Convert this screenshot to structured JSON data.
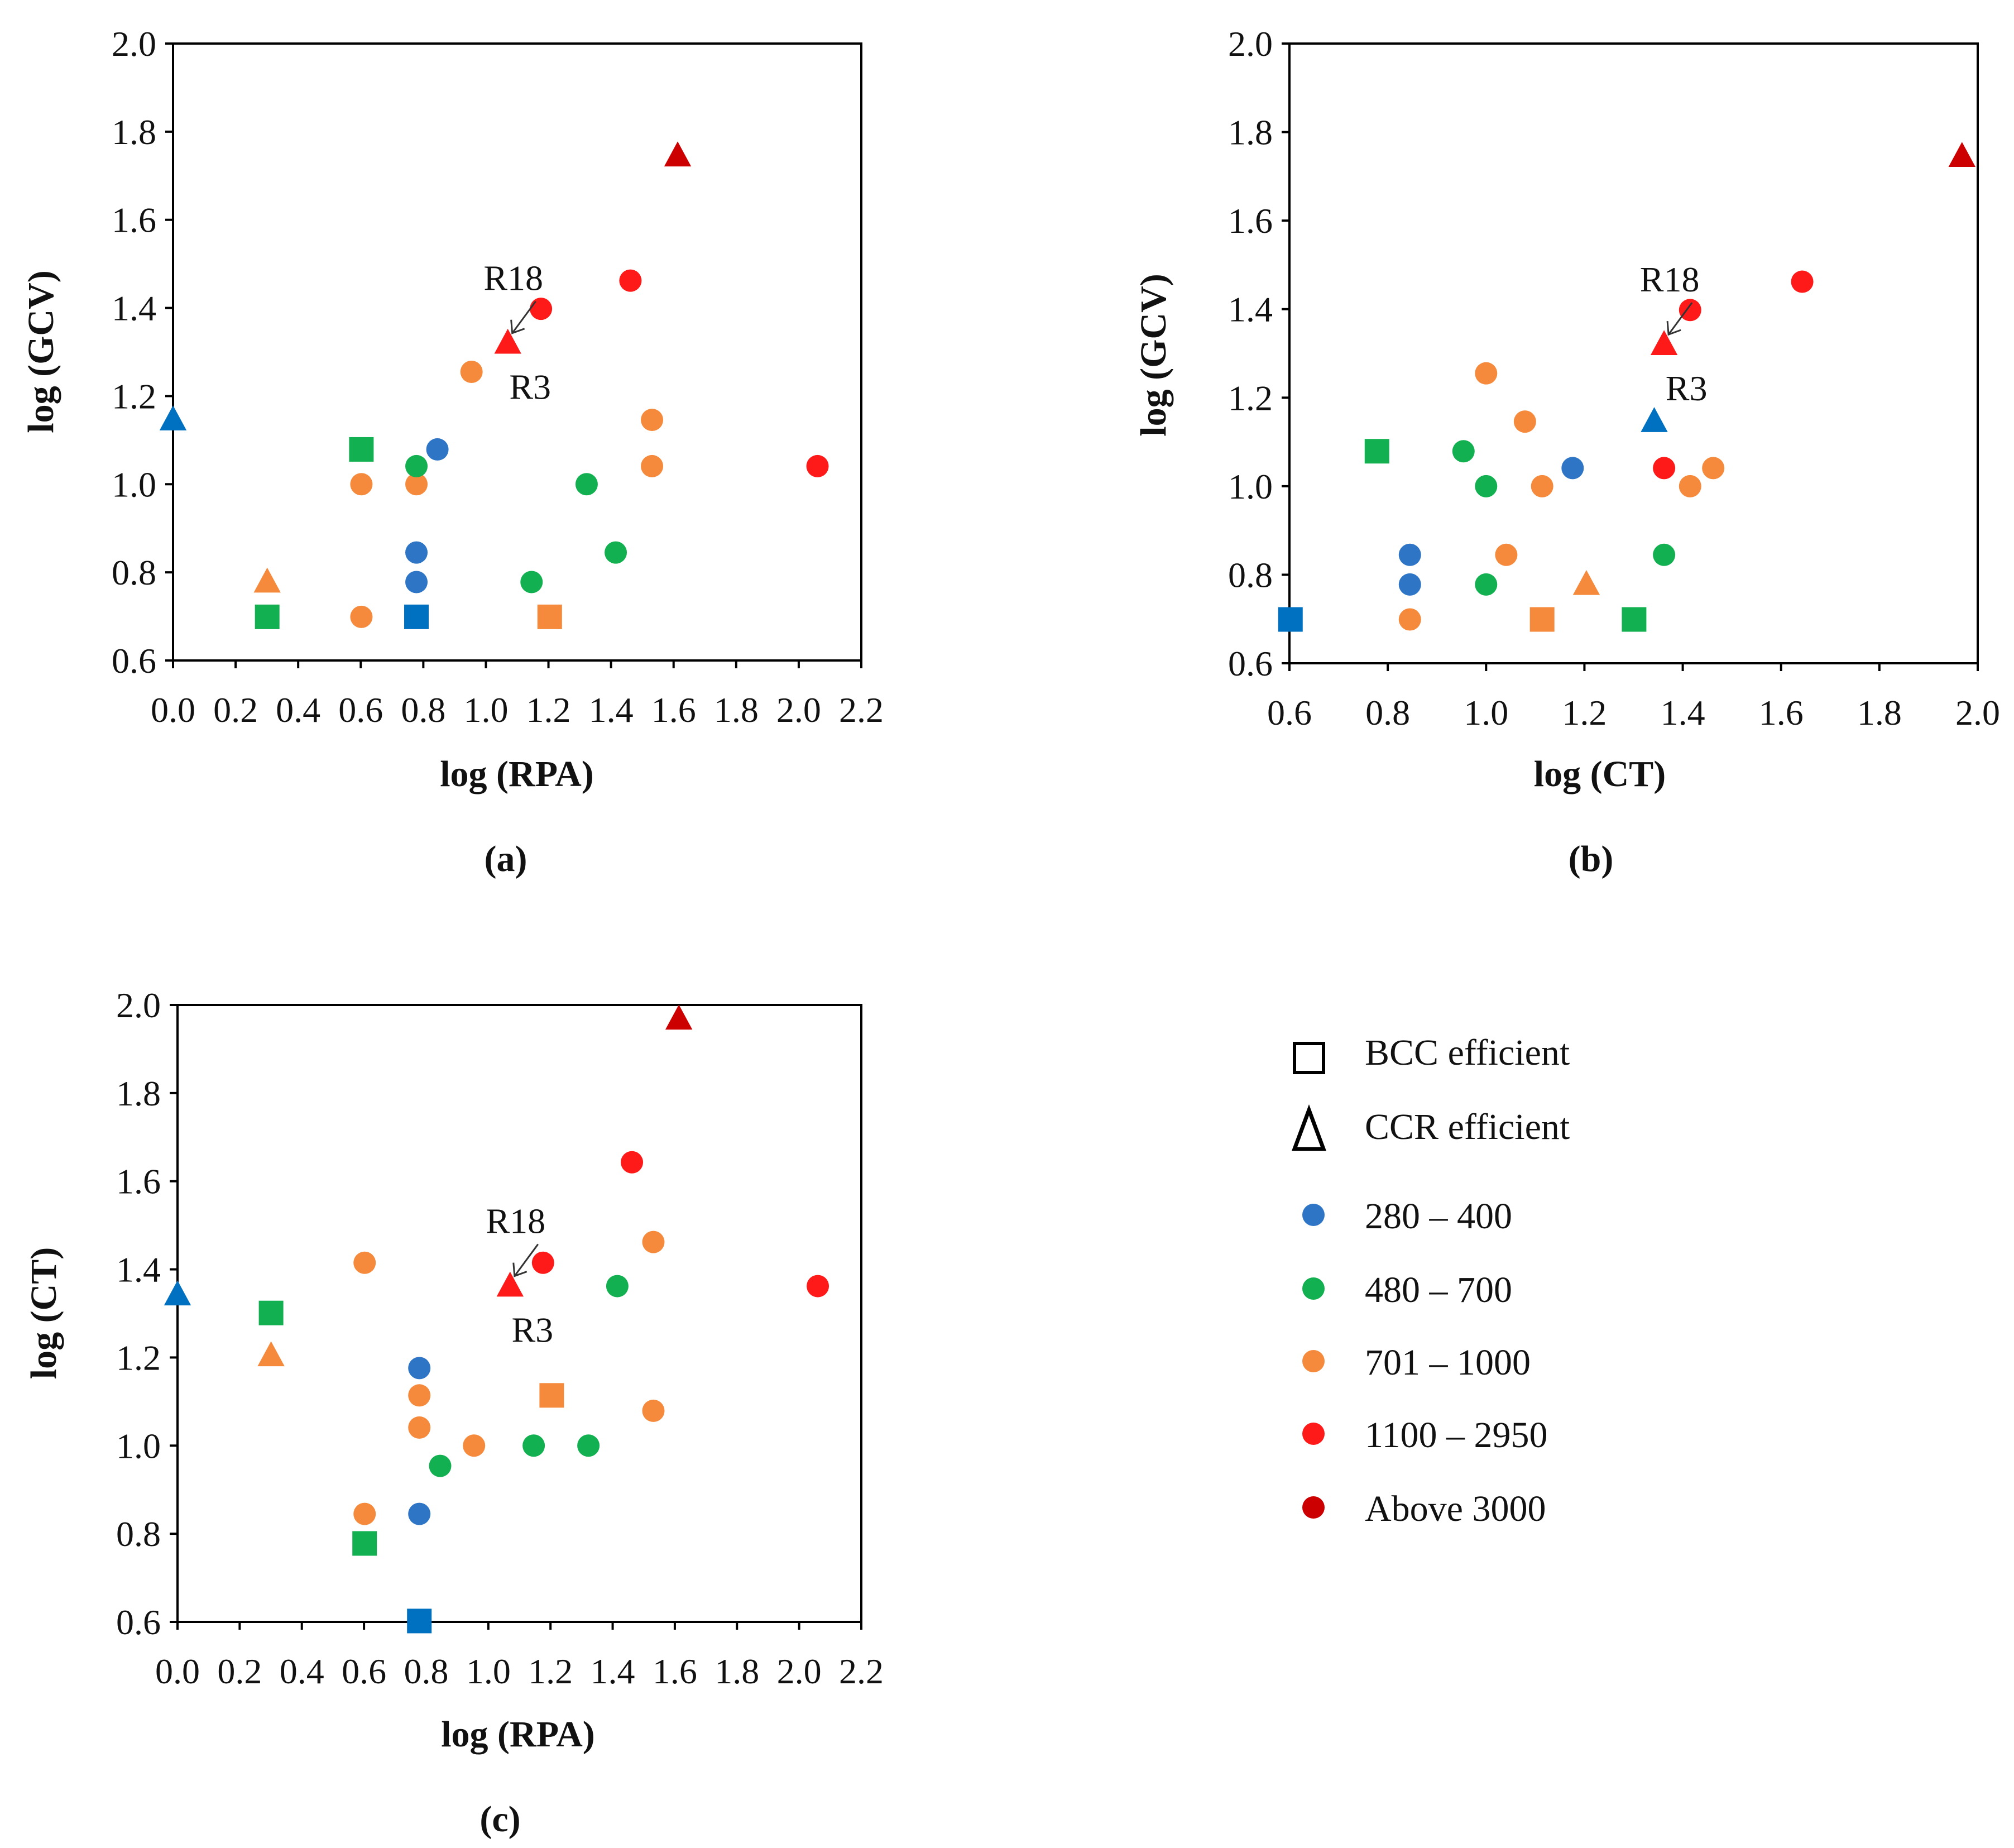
{
  "colors": {
    "280_400": "#2e75c6",
    "480_700": "#12b050",
    "701_1000": "#f58a3c",
    "1100_2950": "#ff1a1a",
    "above_3000": "#cc0000",
    "bcc_blue": "#0070c0"
  },
  "legend": {
    "items": [
      {
        "key": "bcc",
        "label": "BCC efficient",
        "marker": "square-outline"
      },
      {
        "key": "ccr",
        "label": "CCR efficient",
        "marker": "triangle-outline"
      },
      {
        "key": "280_400",
        "label": "280 – 400",
        "marker": "circle"
      },
      {
        "key": "480_700",
        "label": "480 – 700",
        "marker": "circle"
      },
      {
        "key": "701_1000",
        "label": "701 – 1000",
        "marker": "circle"
      },
      {
        "key": "1100_2950",
        "label": "1100 – 2950",
        "marker": "circle"
      },
      {
        "key": "above_3000",
        "label": "Above 3000",
        "marker": "circle"
      }
    ]
  },
  "chart_data": [
    {
      "type": "scatter",
      "panel_label": "(a)",
      "xlabel": "log (RPA)",
      "ylabel": "log (GCV)",
      "xlim": [
        0.0,
        2.2
      ],
      "ylim": [
        0.6,
        2.0
      ],
      "xticks": [
        "0.0",
        "0.2",
        "0.4",
        "0.6",
        "0.8",
        "1.0",
        "1.2",
        "1.4",
        "1.6",
        "1.8",
        "2.0",
        "2.2"
      ],
      "yticks": [
        "0.6",
        "0.8",
        "1.0",
        "1.2",
        "1.4",
        "1.6",
        "1.8",
        "2.0"
      ],
      "annotations": [
        {
          "text": "R18",
          "x": 1.07,
          "y": 1.32,
          "placement": "above"
        },
        {
          "text": "R3",
          "x": 1.07,
          "y": 1.32,
          "placement": "below"
        }
      ],
      "points": [
        {
          "x": 0.0,
          "y": 1.146,
          "marker": "triangle",
          "color": "bcc_blue"
        },
        {
          "x": 0.301,
          "y": 0.778,
          "marker": "triangle",
          "color": "701_1000"
        },
        {
          "x": 0.301,
          "y": 0.699,
          "marker": "square",
          "color": "480_700"
        },
        {
          "x": 0.602,
          "y": 1.079,
          "marker": "square",
          "color": "480_700"
        },
        {
          "x": 0.602,
          "y": 1.0,
          "marker": "circle",
          "color": "701_1000"
        },
        {
          "x": 0.602,
          "y": 0.699,
          "marker": "circle",
          "color": "701_1000"
        },
        {
          "x": 0.778,
          "y": 1.0,
          "marker": "circle",
          "color": "701_1000"
        },
        {
          "x": 0.778,
          "y": 1.041,
          "marker": "circle",
          "color": "480_700"
        },
        {
          "x": 0.778,
          "y": 0.845,
          "marker": "circle",
          "color": "280_400"
        },
        {
          "x": 0.778,
          "y": 0.778,
          "marker": "circle",
          "color": "280_400"
        },
        {
          "x": 0.778,
          "y": 0.699,
          "marker": "square",
          "color": "bcc_blue"
        },
        {
          "x": 0.845,
          "y": 1.079,
          "marker": "circle",
          "color": "280_400"
        },
        {
          "x": 0.954,
          "y": 1.255,
          "marker": "circle",
          "color": "701_1000"
        },
        {
          "x": 1.07,
          "y": 1.32,
          "marker": "triangle",
          "color": "1100_2950"
        },
        {
          "x": 1.146,
          "y": 0.778,
          "marker": "circle",
          "color": "480_700"
        },
        {
          "x": 1.176,
          "y": 1.398,
          "marker": "circle",
          "color": "1100_2950"
        },
        {
          "x": 1.204,
          "y": 0.699,
          "marker": "square",
          "color": "701_1000"
        },
        {
          "x": 1.322,
          "y": 1.0,
          "marker": "circle",
          "color": "480_700"
        },
        {
          "x": 1.415,
          "y": 0.845,
          "marker": "circle",
          "color": "480_700"
        },
        {
          "x": 1.462,
          "y": 1.462,
          "marker": "circle",
          "color": "1100_2950"
        },
        {
          "x": 1.531,
          "y": 1.146,
          "marker": "circle",
          "color": "701_1000"
        },
        {
          "x": 1.531,
          "y": 1.041,
          "marker": "circle",
          "color": "701_1000"
        },
        {
          "x": 1.613,
          "y": 1.745,
          "marker": "triangle",
          "color": "above_3000"
        },
        {
          "x": 2.06,
          "y": 1.041,
          "marker": "circle",
          "color": "1100_2950"
        }
      ]
    },
    {
      "type": "scatter",
      "panel_label": "(b)",
      "xlabel": "log (CT)",
      "ylabel": "log (GCV)",
      "xlim": [
        0.6,
        2.0
      ],
      "ylim": [
        0.6,
        2.0
      ],
      "xticks": [
        "0.6",
        "0.8",
        "1.0",
        "1.2",
        "1.4",
        "1.6",
        "1.8",
        "2.0"
      ],
      "yticks": [
        "0.6",
        "0.8",
        "1.0",
        "1.2",
        "1.4",
        "1.6",
        "1.8",
        "2.0"
      ],
      "annotations": [
        {
          "text": "R18",
          "x": 1.362,
          "y": 1.32,
          "placement": "above"
        },
        {
          "text": "R3",
          "x": 1.362,
          "y": 1.32,
          "placement": "below"
        }
      ],
      "points": [
        {
          "x": 0.602,
          "y": 0.699,
          "marker": "square",
          "color": "bcc_blue"
        },
        {
          "x": 0.778,
          "y": 1.079,
          "marker": "square",
          "color": "480_700"
        },
        {
          "x": 0.845,
          "y": 0.845,
          "marker": "circle",
          "color": "280_400"
        },
        {
          "x": 0.845,
          "y": 0.778,
          "marker": "circle",
          "color": "280_400"
        },
        {
          "x": 0.845,
          "y": 0.699,
          "marker": "circle",
          "color": "701_1000"
        },
        {
          "x": 0.954,
          "y": 1.079,
          "marker": "circle",
          "color": "480_700"
        },
        {
          "x": 1.0,
          "y": 1.255,
          "marker": "circle",
          "color": "701_1000"
        },
        {
          "x": 1.0,
          "y": 1.0,
          "marker": "circle",
          "color": "480_700"
        },
        {
          "x": 1.0,
          "y": 0.778,
          "marker": "circle",
          "color": "480_700"
        },
        {
          "x": 1.041,
          "y": 0.845,
          "marker": "circle",
          "color": "701_1000"
        },
        {
          "x": 1.079,
          "y": 1.146,
          "marker": "circle",
          "color": "701_1000"
        },
        {
          "x": 1.114,
          "y": 1.0,
          "marker": "circle",
          "color": "701_1000"
        },
        {
          "x": 1.114,
          "y": 0.699,
          "marker": "square",
          "color": "701_1000"
        },
        {
          "x": 1.176,
          "y": 1.041,
          "marker": "circle",
          "color": "280_400"
        },
        {
          "x": 1.204,
          "y": 0.778,
          "marker": "triangle",
          "color": "701_1000"
        },
        {
          "x": 1.301,
          "y": 0.699,
          "marker": "square",
          "color": "480_700"
        },
        {
          "x": 1.342,
          "y": 1.146,
          "marker": "triangle",
          "color": "bcc_blue"
        },
        {
          "x": 1.362,
          "y": 1.32,
          "marker": "triangle",
          "color": "1100_2950"
        },
        {
          "x": 1.362,
          "y": 1.041,
          "marker": "circle",
          "color": "1100_2950"
        },
        {
          "x": 1.362,
          "y": 0.845,
          "marker": "circle",
          "color": "480_700"
        },
        {
          "x": 1.415,
          "y": 1.398,
          "marker": "circle",
          "color": "1100_2950"
        },
        {
          "x": 1.415,
          "y": 1.0,
          "marker": "circle",
          "color": "701_1000"
        },
        {
          "x": 1.462,
          "y": 1.041,
          "marker": "circle",
          "color": "701_1000"
        },
        {
          "x": 1.643,
          "y": 1.462,
          "marker": "circle",
          "color": "1100_2950"
        },
        {
          "x": 1.968,
          "y": 1.745,
          "marker": "triangle",
          "color": "above_3000"
        }
      ]
    },
    {
      "type": "scatter",
      "panel_label": "(c)",
      "xlabel": "log (RPA)",
      "ylabel": "log (CT)",
      "xlim": [
        0.0,
        2.2
      ],
      "ylim": [
        0.6,
        2.0
      ],
      "xticks": [
        "0.0",
        "0.2",
        "0.4",
        "0.6",
        "0.8",
        "1.0",
        "1.2",
        "1.4",
        "1.6",
        "1.8",
        "2.0",
        "2.2"
      ],
      "yticks": [
        "0.6",
        "0.8",
        "1.0",
        "1.2",
        "1.4",
        "1.6",
        "1.8",
        "2.0"
      ],
      "annotations": [
        {
          "text": "R18",
          "x": 1.07,
          "y": 1.362,
          "placement": "above"
        },
        {
          "text": "R3",
          "x": 1.07,
          "y": 1.362,
          "placement": "below"
        }
      ],
      "points": [
        {
          "x": 0.0,
          "y": 1.342,
          "marker": "triangle",
          "color": "bcc_blue"
        },
        {
          "x": 0.301,
          "y": 1.301,
          "marker": "square",
          "color": "480_700"
        },
        {
          "x": 0.301,
          "y": 1.204,
          "marker": "triangle",
          "color": "701_1000"
        },
        {
          "x": 0.602,
          "y": 1.415,
          "marker": "circle",
          "color": "701_1000"
        },
        {
          "x": 0.602,
          "y": 0.845,
          "marker": "circle",
          "color": "701_1000"
        },
        {
          "x": 0.602,
          "y": 0.778,
          "marker": "square",
          "color": "480_700"
        },
        {
          "x": 0.778,
          "y": 1.176,
          "marker": "circle",
          "color": "280_400"
        },
        {
          "x": 0.778,
          "y": 1.114,
          "marker": "circle",
          "color": "701_1000"
        },
        {
          "x": 0.778,
          "y": 1.041,
          "marker": "circle",
          "color": "701_1000"
        },
        {
          "x": 0.778,
          "y": 0.845,
          "marker": "circle",
          "color": "280_400"
        },
        {
          "x": 0.778,
          "y": 0.602,
          "marker": "square",
          "color": "bcc_blue"
        },
        {
          "x": 0.845,
          "y": 0.954,
          "marker": "circle",
          "color": "480_700"
        },
        {
          "x": 0.954,
          "y": 1.0,
          "marker": "circle",
          "color": "701_1000"
        },
        {
          "x": 1.07,
          "y": 1.362,
          "marker": "triangle",
          "color": "1100_2950"
        },
        {
          "x": 1.146,
          "y": 1.0,
          "marker": "circle",
          "color": "480_700"
        },
        {
          "x": 1.176,
          "y": 1.415,
          "marker": "circle",
          "color": "1100_2950"
        },
        {
          "x": 1.204,
          "y": 1.114,
          "marker": "square",
          "color": "701_1000"
        },
        {
          "x": 1.322,
          "y": 1.0,
          "marker": "circle",
          "color": "480_700"
        },
        {
          "x": 1.415,
          "y": 1.362,
          "marker": "circle",
          "color": "480_700"
        },
        {
          "x": 1.462,
          "y": 1.643,
          "marker": "circle",
          "color": "1100_2950"
        },
        {
          "x": 1.531,
          "y": 1.462,
          "marker": "circle",
          "color": "701_1000"
        },
        {
          "x": 1.531,
          "y": 1.079,
          "marker": "circle",
          "color": "701_1000"
        },
        {
          "x": 1.613,
          "y": 1.968,
          "marker": "triangle",
          "color": "above_3000"
        },
        {
          "x": 2.06,
          "y": 1.362,
          "marker": "circle",
          "color": "1100_2950"
        }
      ]
    }
  ]
}
